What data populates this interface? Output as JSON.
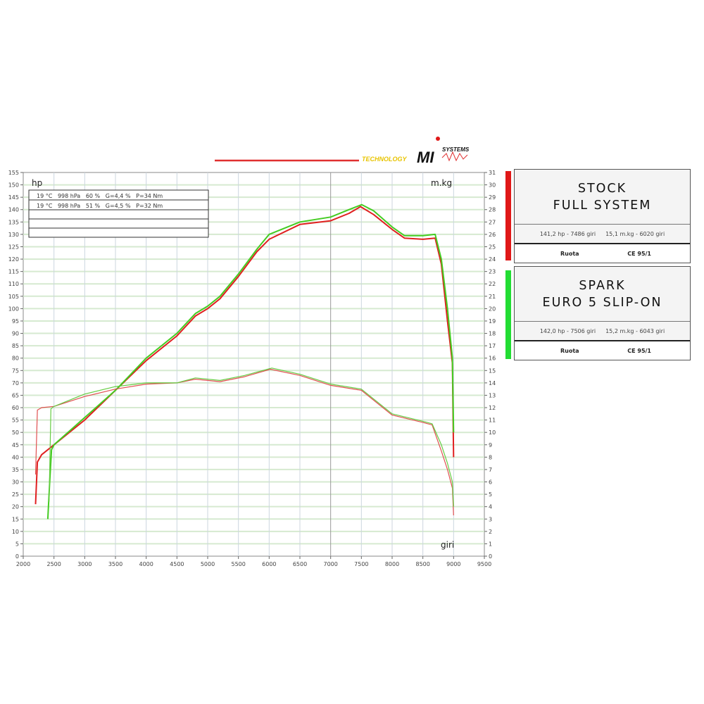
{
  "logo": {
    "text": "TECHNOLOGY MI SYSTEMS",
    "line_color": "#e03030"
  },
  "chart_data": {
    "type": "line",
    "xlabel": "giri",
    "ylabel_left": "hp",
    "ylabel_right": "m.kg",
    "xlim": [
      2000,
      9500
    ],
    "ylim_left": [
      0,
      155
    ],
    "ylim_right": [
      0,
      31
    ],
    "x_ticks": [
      2000,
      2500,
      3000,
      3500,
      4000,
      4500,
      5000,
      5500,
      6000,
      6500,
      7000,
      7500,
      8000,
      8500,
      9000,
      9500
    ],
    "y_ticks_left": [
      0,
      5,
      10,
      15,
      20,
      25,
      30,
      35,
      40,
      45,
      50,
      55,
      60,
      65,
      70,
      75,
      80,
      85,
      90,
      95,
      100,
      105,
      110,
      115,
      120,
      125,
      130,
      135,
      140,
      145,
      150,
      155
    ],
    "y_ticks_right": [
      0,
      1,
      2,
      3,
      4,
      5,
      6,
      7,
      8,
      9,
      10,
      11,
      12,
      13,
      14,
      15,
      16,
      17,
      18,
      19,
      20,
      21,
      22,
      23,
      24,
      25,
      26,
      27,
      28,
      29,
      30,
      31
    ],
    "grid": true,
    "conditions": [
      "19 °C   998 hPa   60 %   G=4,4 %   P=34 Nm",
      "19 °C   998 hPa   51 %   G=4,5 %   P=32 Nm"
    ],
    "series": [
      {
        "name": "STOCK FULL SYSTEM",
        "quantity": "power",
        "axis": "hp",
        "color": "#e02020",
        "points": [
          [
            2200,
            21
          ],
          [
            2230,
            38
          ],
          [
            2300,
            41
          ],
          [
            2500,
            45
          ],
          [
            3000,
            55
          ],
          [
            3500,
            67
          ],
          [
            4000,
            79
          ],
          [
            4500,
            89
          ],
          [
            4800,
            97
          ],
          [
            5000,
            100
          ],
          [
            5200,
            104
          ],
          [
            5500,
            113
          ],
          [
            5800,
            123
          ],
          [
            6000,
            128
          ],
          [
            6500,
            134
          ],
          [
            7000,
            135.5
          ],
          [
            7300,
            138.5
          ],
          [
            7486,
            141.2
          ],
          [
            7700,
            138
          ],
          [
            8000,
            132
          ],
          [
            8200,
            128.5
          ],
          [
            8500,
            128
          ],
          [
            8700,
            128.5
          ],
          [
            8800,
            118
          ],
          [
            8900,
            95
          ],
          [
            8980,
            78
          ],
          [
            9000,
            40
          ]
        ]
      },
      {
        "name": "SPARK EURO 5 SLIP-ON",
        "quantity": "power",
        "axis": "hp",
        "color": "#44cc22",
        "points": [
          [
            2400,
            15
          ],
          [
            2430,
            30
          ],
          [
            2460,
            43
          ],
          [
            2500,
            45
          ],
          [
            3000,
            56
          ],
          [
            3500,
            67
          ],
          [
            4000,
            80
          ],
          [
            4500,
            90
          ],
          [
            4800,
            98
          ],
          [
            5000,
            101
          ],
          [
            5200,
            105
          ],
          [
            5500,
            114
          ],
          [
            5800,
            124
          ],
          [
            6000,
            130
          ],
          [
            6500,
            135
          ],
          [
            7000,
            137
          ],
          [
            7300,
            140
          ],
          [
            7506,
            142
          ],
          [
            7700,
            139.5
          ],
          [
            8000,
            133
          ],
          [
            8200,
            129.5
          ],
          [
            8500,
            129.5
          ],
          [
            8700,
            130
          ],
          [
            8800,
            120
          ],
          [
            8900,
            100
          ],
          [
            8980,
            80
          ],
          [
            9000,
            50
          ]
        ]
      },
      {
        "name": "STOCK FULL SYSTEM",
        "quantity": "torque",
        "axis": "m.kg",
        "color": "#e05050",
        "points": [
          [
            2200,
            6.6
          ],
          [
            2230,
            11.8
          ],
          [
            2300,
            12
          ],
          [
            2500,
            12.1
          ],
          [
            3000,
            12.9
          ],
          [
            3500,
            13.5
          ],
          [
            4000,
            13.9
          ],
          [
            4500,
            14
          ],
          [
            4800,
            14.3
          ],
          [
            5200,
            14.1
          ],
          [
            5600,
            14.5
          ],
          [
            6020,
            15.1
          ],
          [
            6500,
            14.6
          ],
          [
            7000,
            13.8
          ],
          [
            7500,
            13.4
          ],
          [
            8000,
            11.4
          ],
          [
            8500,
            10.8
          ],
          [
            8650,
            10.6
          ],
          [
            8800,
            8.5
          ],
          [
            8900,
            7
          ],
          [
            8980,
            5.5
          ],
          [
            9000,
            3.3
          ]
        ]
      },
      {
        "name": "SPARK EURO 5 SLIP-ON",
        "quantity": "torque",
        "axis": "m.kg",
        "color": "#66cc44",
        "points": [
          [
            2420,
            4.4
          ],
          [
            2450,
            11.9
          ],
          [
            2500,
            12.1
          ],
          [
            3000,
            13.1
          ],
          [
            3500,
            13.7
          ],
          [
            4000,
            14
          ],
          [
            4500,
            14
          ],
          [
            4800,
            14.4
          ],
          [
            5200,
            14.2
          ],
          [
            5600,
            14.6
          ],
          [
            6043,
            15.2
          ],
          [
            6500,
            14.7
          ],
          [
            7000,
            13.9
          ],
          [
            7500,
            13.5
          ],
          [
            8000,
            11.5
          ],
          [
            8500,
            10.9
          ],
          [
            8650,
            10.7
          ],
          [
            8800,
            9
          ],
          [
            8900,
            7.5
          ],
          [
            8980,
            6
          ],
          [
            9000,
            4
          ]
        ]
      }
    ]
  },
  "legend": [
    {
      "title_line1": "STOCK",
      "title_line2": "FULL SYSTEM",
      "power": "141,2 hp - 7486 giri",
      "torque": "15,1 m.kg - 6020 giri",
      "mode": "Ruota",
      "standard": "CE 95/1",
      "color": "#e01818"
    },
    {
      "title_line1": "SPARK",
      "title_line2": "EURO 5 SLIP-ON",
      "power": "142,0 hp - 7506 giri",
      "torque": "15,2 m.kg - 6043 giri",
      "mode": "Ruota",
      "standard": "CE 95/1",
      "color": "#22dd33"
    }
  ]
}
